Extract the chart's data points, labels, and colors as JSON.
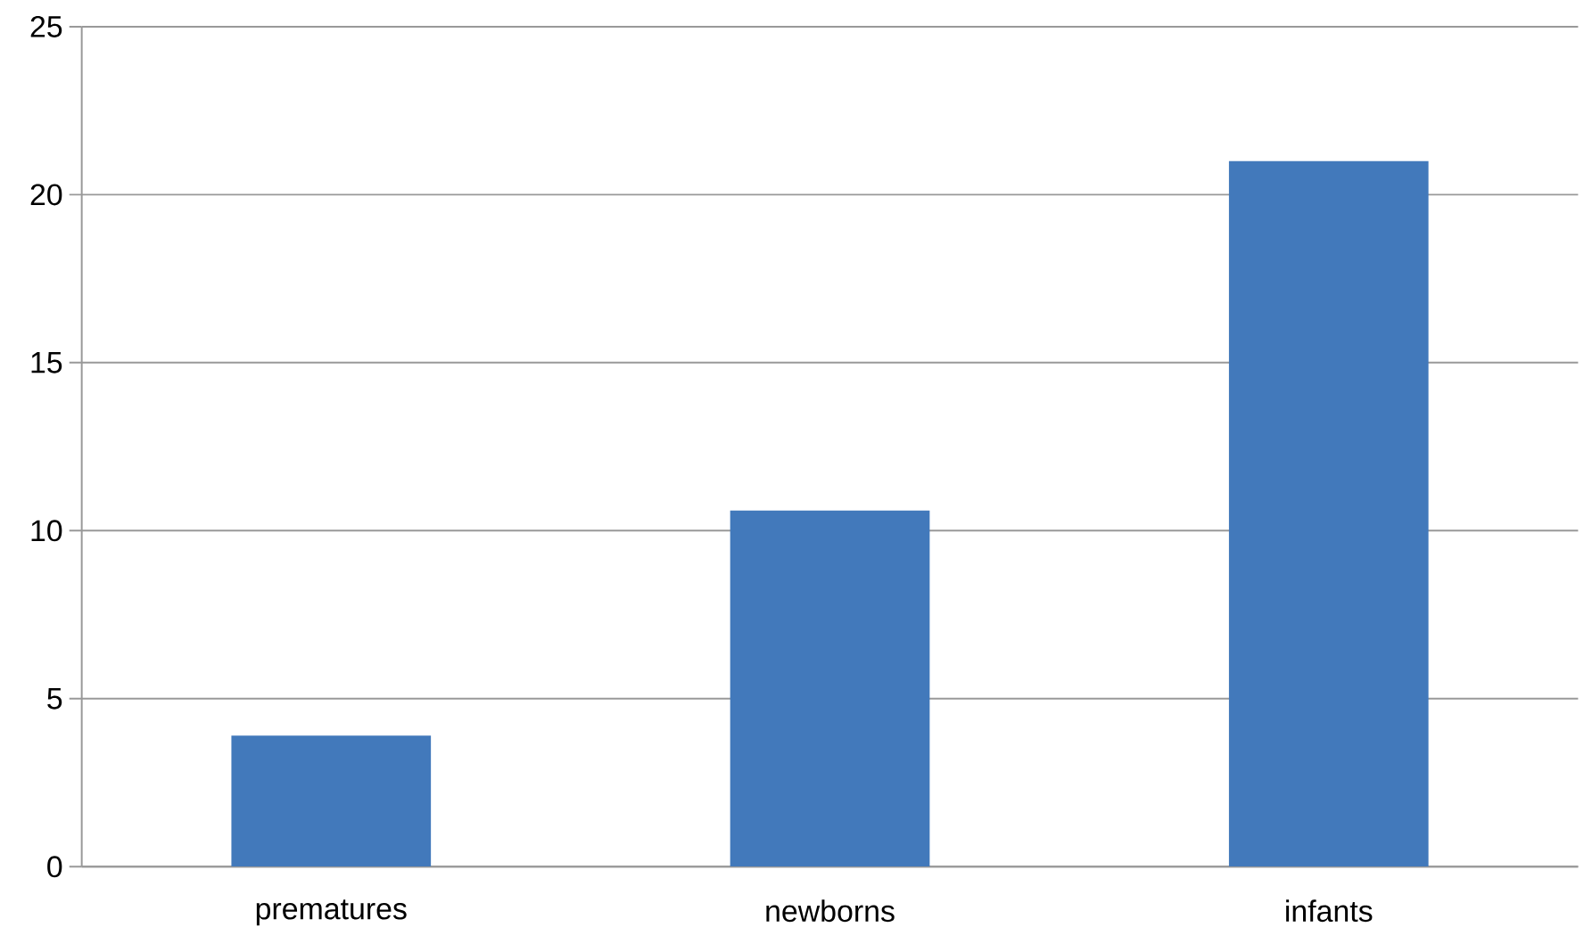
{
  "chart_data": {
    "type": "bar",
    "categories": [
      "prematures",
      "newborns",
      "infants"
    ],
    "values": [
      3.9,
      10.6,
      21.0
    ],
    "color": "#4279bb",
    "ylim": [
      0,
      25
    ],
    "yticks": [
      0,
      5,
      10,
      15,
      20,
      25
    ],
    "grid": "y"
  }
}
